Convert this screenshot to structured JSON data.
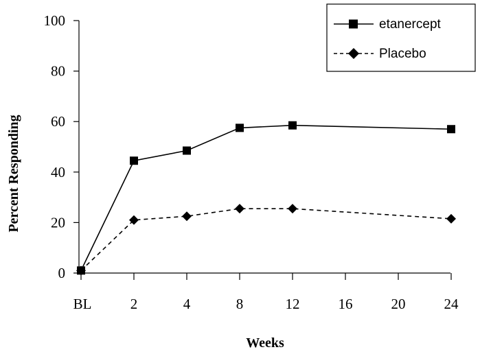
{
  "chart_data": {
    "type": "line",
    "title": "",
    "xlabel": "Weeks",
    "ylabel": "Percent Responding",
    "categories": [
      "BL",
      "2",
      "4",
      "8",
      "12",
      "16",
      "20",
      "24"
    ],
    "ylim": [
      0,
      100
    ],
    "yticks": [
      "0",
      "20",
      "40",
      "60",
      "80",
      "100"
    ],
    "grid": false,
    "legend_position": "top-right",
    "series": [
      {
        "name": "etanercept",
        "marker": "square",
        "line_style": "solid",
        "color": "#000000",
        "points": [
          {
            "x": "BL",
            "y": 1
          },
          {
            "x": "2",
            "y": 44.5
          },
          {
            "x": "4",
            "y": 48.5
          },
          {
            "x": "8",
            "y": 57.5
          },
          {
            "x": "12",
            "y": 58.5
          },
          {
            "x": "24",
            "y": 57
          }
        ]
      },
      {
        "name": "Placebo",
        "marker": "diamond",
        "line_style": "dashed",
        "color": "#000000",
        "points": [
          {
            "x": "BL",
            "y": 1
          },
          {
            "x": "2",
            "y": 21
          },
          {
            "x": "4",
            "y": 22.5
          },
          {
            "x": "8",
            "y": 25.5
          },
          {
            "x": "12",
            "y": 25.5
          },
          {
            "x": "24",
            "y": 21.5
          }
        ]
      }
    ]
  }
}
